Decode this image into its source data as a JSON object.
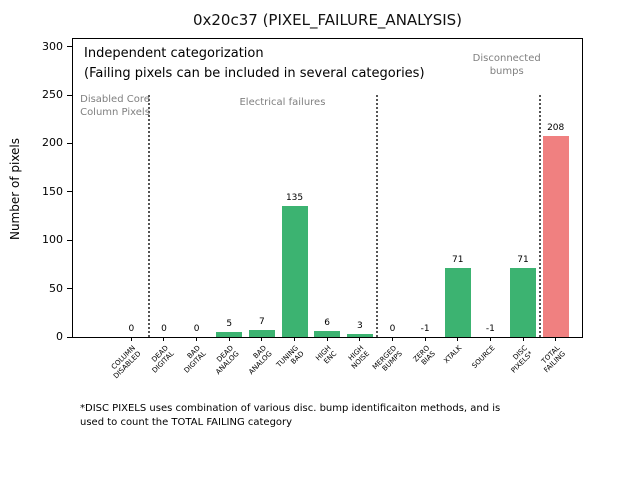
{
  "chart_data": {
    "type": "bar",
    "title": "0x20c37 (PIXEL_FAILURE_ANALYSIS)",
    "xlabel": "",
    "ylabel": "Number of pixels",
    "categories": [
      "COLUMN\nDISABLED",
      "DEAD\nDIGITAL",
      "BAD\nDIGITAL",
      "DEAD\nANALOG",
      "BAD\nANALOG",
      "TUNING\nBAD",
      "HIGH\nENC",
      "HIGH\nNOISE",
      "MERGED\nBUMPS",
      "ZERO\nBIAS",
      "XTALK",
      "SOURCE",
      "DISC\nPIXELS*",
      "TOTAL\nFAILING"
    ],
    "values": [
      0,
      0,
      0,
      5,
      7,
      135,
      6,
      3,
      0,
      -1,
      71,
      -1,
      71,
      208
    ],
    "bar_colors": {
      "default": "#3cb371",
      "total_failing": "#f08080"
    },
    "ylim": [
      0,
      308
    ],
    "yticks": [
      0,
      50,
      100,
      150,
      200,
      250,
      300
    ],
    "grid": "off",
    "legend": "none",
    "separators": {
      "after_indices": [
        0,
        7,
        12
      ],
      "top_value": 250,
      "style": "dotted",
      "color": "#555555"
    },
    "annotations": {
      "note_line1": "Independent categorization",
      "note_line2": "(Failing pixels can be included in several categories)",
      "color": "#7f7f7f",
      "groups": [
        {
          "label": "Disabled Core\nColumn Pixels",
          "center_index": -0.5,
          "top_value": 252
        },
        {
          "label": "Electrical failures",
          "center_index": 4.63,
          "top_value": 249
        },
        {
          "label": "Disconnected\nbumps",
          "center_index": 11.5,
          "top_value": 295
        }
      ]
    },
    "footnote_lines": [
      "*DISC PIXELS uses combination of various disc. bump identificaiton methods, and is",
      "used to count the TOTAL FAILING category"
    ]
  }
}
